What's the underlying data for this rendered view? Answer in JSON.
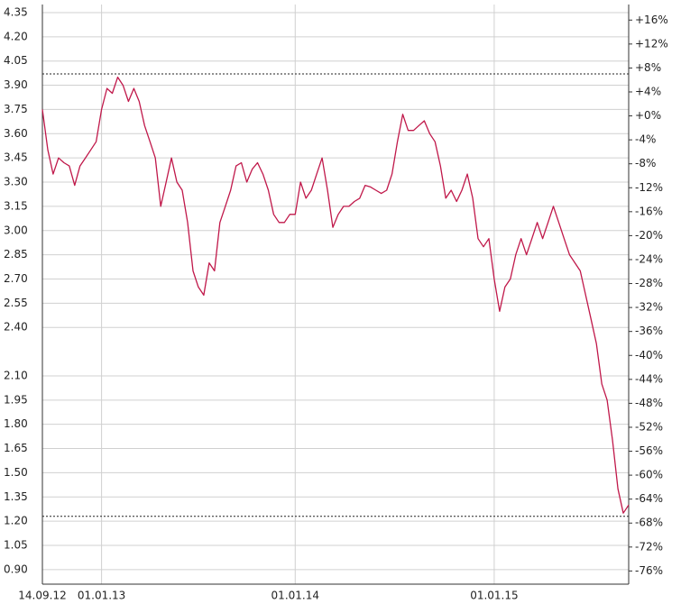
{
  "chart_data": {
    "type": "line",
    "categories": [
      "14.09.12",
      null,
      null,
      null,
      null,
      null,
      null,
      null,
      null,
      null,
      null,
      "01.01.13",
      null,
      null,
      null,
      null,
      null,
      null,
      null,
      null,
      null,
      null,
      null,
      null,
      null,
      null,
      null,
      null,
      null,
      null,
      null,
      null,
      null,
      null,
      null,
      null,
      null,
      null,
      null,
      null,
      null,
      null,
      null,
      null,
      null,
      null,
      null,
      "01.01.14",
      null,
      null,
      null,
      null,
      null,
      null,
      null,
      null,
      null,
      null,
      null,
      null,
      null,
      null,
      null,
      null,
      null,
      null,
      null,
      null,
      null,
      null,
      null,
      null,
      null,
      null,
      null,
      null,
      null,
      null,
      null,
      null,
      null,
      null,
      null,
      null,
      "01.01.15",
      null,
      null,
      null,
      null,
      null,
      null,
      null,
      null,
      null,
      null,
      null,
      null,
      null,
      null,
      null,
      null,
      null,
      null,
      null,
      null,
      null,
      null,
      null,
      null,
      null
    ],
    "series": [
      {
        "color": "#c0184a",
        "values": [
          3.75,
          3.5,
          3.35,
          3.45,
          3.42,
          3.4,
          3.28,
          3.4,
          3.45,
          3.5,
          3.55,
          3.75,
          3.88,
          3.85,
          3.95,
          3.9,
          3.8,
          3.88,
          3.8,
          3.65,
          3.55,
          3.45,
          3.15,
          3.3,
          3.45,
          3.3,
          3.25,
          3.05,
          2.75,
          2.65,
          2.6,
          2.8,
          2.75,
          3.05,
          3.15,
          3.25,
          3.4,
          3.42,
          3.3,
          3.38,
          3.42,
          3.35,
          3.25,
          3.1,
          3.05,
          3.05,
          3.1,
          3.1,
          3.3,
          3.2,
          3.25,
          3.35,
          3.45,
          3.25,
          3.02,
          3.1,
          3.15,
          3.15,
          3.18,
          3.2,
          3.28,
          3.27,
          3.25,
          3.23,
          3.25,
          3.35,
          3.55,
          3.72,
          3.62,
          3.62,
          3.65,
          3.68,
          3.6,
          3.55,
          3.4,
          3.2,
          3.25,
          3.18,
          3.25,
          3.35,
          3.2,
          2.95,
          2.9,
          2.95,
          2.7,
          2.5,
          2.65,
          2.7,
          2.85,
          2.95,
          2.85,
          2.95,
          3.05,
          2.95,
          3.05,
          3.15,
          3.05,
          2.95,
          2.85,
          2.8,
          2.75,
          2.6,
          2.45,
          2.3,
          2.05,
          1.95,
          1.7,
          1.4,
          1.25,
          1.3
        ]
      }
    ],
    "hlines": [
      3.97,
      1.23
    ],
    "ylim": [
      0.81,
      4.4
    ],
    "yticks": [
      4.35,
      {
        "value": 4.2,
        "label": "4.20"
      },
      4.05,
      {
        "value": 3.9,
        "label": "3.90"
      },
      3.75,
      {
        "value": 3.6,
        "label": "3.60"
      },
      3.45,
      {
        "value": 3.3,
        "label": "3.30"
      },
      3.15,
      {
        "value": 3,
        "label": "3.00"
      },
      2.85,
      {
        "value": 2.7,
        "label": "2.70"
      },
      2.55,
      {
        "value": 2.4,
        "label": "2.40"
      },
      {
        "value": 2.1,
        "label": "2.10"
      },
      1.95,
      {
        "value": 1.8,
        "label": "1.80"
      },
      1.65,
      {
        "value": 1.5,
        "label": "1.50"
      },
      1.35,
      {
        "value": 1.2,
        "label": "1.20"
      },
      1.05,
      {
        "value": 0.9,
        "label": "0.90"
      }
    ],
    "y2lim": [
      -78.2,
      18.6
    ],
    "y2ticks": [
      {
        "value": 16,
        "label": "+16%"
      },
      {
        "value": 12,
        "label": "+12%"
      },
      {
        "value": 8,
        "label": "+8%"
      },
      {
        "value": 4,
        "label": "+4%"
      },
      {
        "value": 0,
        "label": "+0%"
      },
      {
        "value": -4,
        "label": "-4%"
      },
      {
        "value": -8,
        "label": "-8%"
      },
      {
        "value": -12,
        "label": "-12%"
      },
      {
        "value": -16,
        "label": "-16%"
      },
      {
        "value": -20,
        "label": "-20%"
      },
      {
        "value": -24,
        "label": "-24%"
      },
      {
        "value": -28,
        "label": "-28%"
      },
      {
        "value": -32,
        "label": "-32%"
      },
      {
        "value": -36,
        "label": "-36%"
      },
      {
        "value": -40,
        "label": "-40%"
      },
      {
        "value": -44,
        "label": "-44%"
      },
      {
        "value": -48,
        "label": "-48%"
      },
      {
        "value": -52,
        "label": "-52%"
      },
      {
        "value": -56,
        "label": "-56%"
      },
      {
        "value": -60,
        "label": "-60%"
      },
      {
        "value": -64,
        "label": "-64%"
      },
      {
        "value": -68,
        "label": "-68%"
      },
      {
        "value": -72,
        "label": "-72%"
      },
      {
        "value": -76,
        "label": "-76%"
      }
    ],
    "grid": true
  }
}
